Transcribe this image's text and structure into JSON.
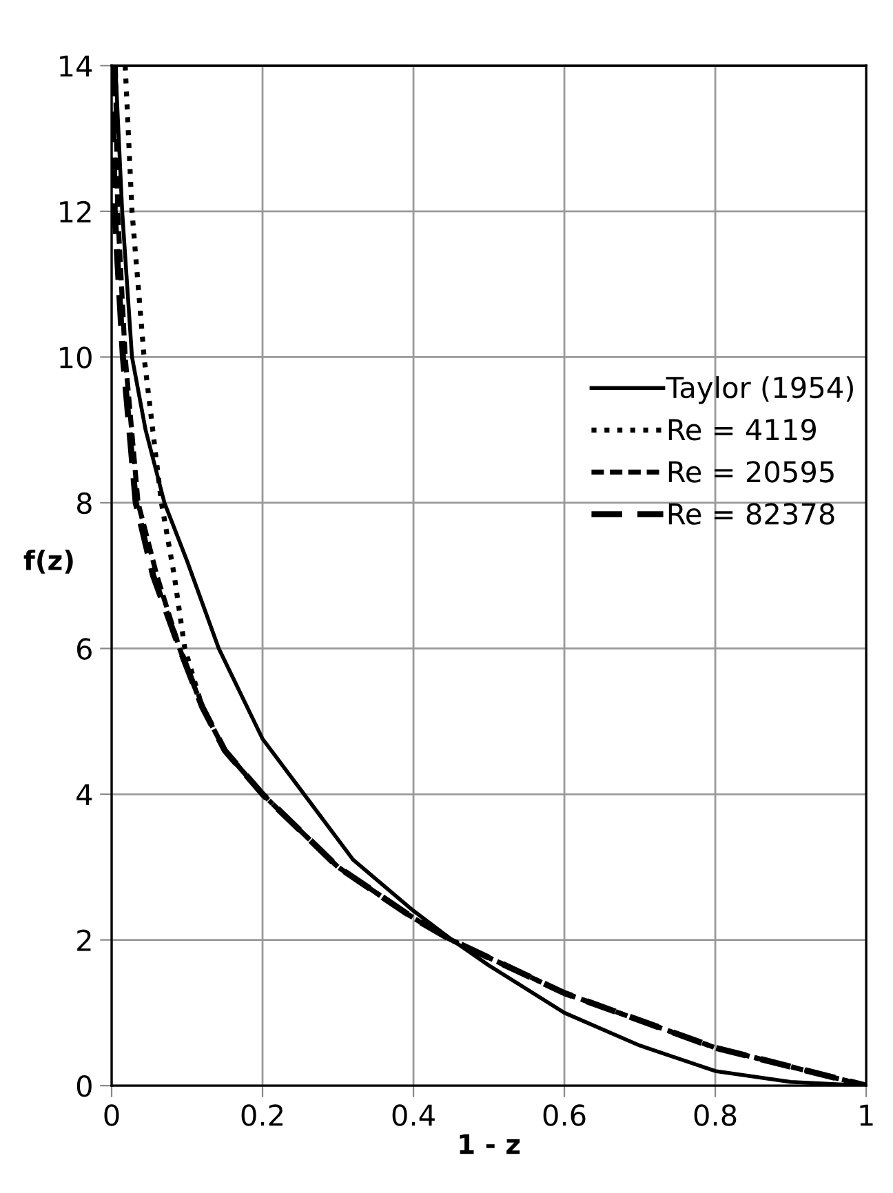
{
  "chart_data": {
    "type": "line",
    "xlabel": "1 - z",
    "ylabel": "f(z)",
    "xlim": [
      0,
      1
    ],
    "ylim": [
      0,
      14
    ],
    "xticks": [
      0,
      0.2,
      0.4,
      0.6,
      0.8,
      1
    ],
    "yticks": [
      0,
      2,
      4,
      6,
      8,
      10,
      12,
      14
    ],
    "grid": true,
    "legend": "right",
    "series": [
      {
        "name": "Taylor (1954)",
        "color": "#000000",
        "line_style": "solid",
        "x": [
          0.005,
          0.014,
          0.027,
          0.045,
          0.07,
          0.1,
          0.142,
          0.2,
          0.255,
          0.32,
          0.4,
          0.451,
          0.5,
          0.6,
          0.7,
          0.8,
          0.9,
          1
        ],
        "values": [
          14,
          12,
          10,
          9,
          8,
          7.2,
          6,
          4.76,
          4,
          3.1,
          2.4,
          2,
          1.65,
          1.0,
          0.55,
          0.2,
          0.05,
          0
        ]
      },
      {
        "name": "Re = 4119",
        "color": "#000000",
        "line_style": "dotted",
        "x": [
          0.018,
          0.027,
          0.043,
          0.066,
          0.083,
          0.097,
          0.12,
          0.15,
          0.2,
          0.3,
          0.4,
          0.45,
          0.6,
          0.8,
          1
        ],
        "values": [
          14,
          12,
          10,
          8,
          7,
          6,
          5.2,
          4.6,
          4,
          3,
          2.3,
          2,
          1.27,
          0.52,
          0
        ]
      },
      {
        "name": "Re = 20595",
        "color": "#000000",
        "line_style": "densedash",
        "x": [
          0.005,
          0.008,
          0.018,
          0.035,
          0.06,
          0.09,
          0.12,
          0.15,
          0.2,
          0.3,
          0.4,
          0.45,
          0.6,
          0.8,
          1
        ],
        "values": [
          14,
          12,
          10,
          8,
          7,
          6,
          5.2,
          4.6,
          4,
          3,
          2.3,
          2,
          1.27,
          0.52,
          0
        ]
      },
      {
        "name": "Re = 82378",
        "color": "#000000",
        "line_style": "dashed",
        "x": [
          0.001,
          0.004,
          0.015,
          0.032,
          0.055,
          0.09,
          0.12,
          0.15,
          0.2,
          0.3,
          0.4,
          0.45,
          0.6,
          0.8,
          1
        ],
        "values": [
          14,
          12,
          10,
          8,
          7,
          6,
          5.2,
          4.6,
          4,
          3,
          2.3,
          2,
          1.27,
          0.52,
          0
        ]
      }
    ]
  }
}
